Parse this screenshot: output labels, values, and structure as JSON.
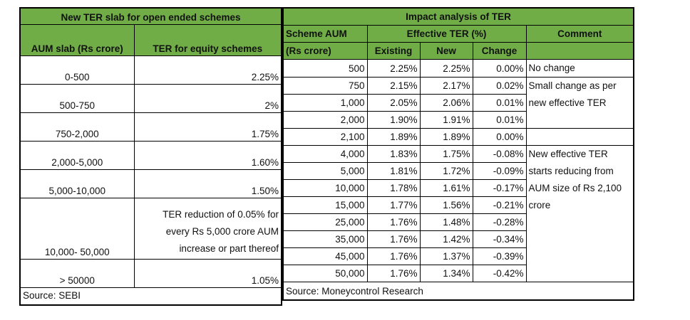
{
  "left": {
    "title": "New TER slab for open ended schemes",
    "headers": [
      "AUM slab (Rs crore)",
      "TER for equity schemes"
    ],
    "rows": [
      {
        "slab": "0-500",
        "ter": "2.25%"
      },
      {
        "slab": "500-750",
        "ter": "2%"
      },
      {
        "slab": "750-2,000",
        "ter": "1.75%"
      },
      {
        "slab": "2,000-5,000",
        "ter": "1.60%"
      },
      {
        "slab": "5,000-10,000",
        "ter": "1.50%"
      },
      {
        "slab": "10,000- 50,000",
        "ter": "TER reduction of 0.05% for every Rs 5,000 crore AUM increase or part thereof"
      },
      {
        "slab": "> 50000",
        "ter": "1.05%"
      }
    ],
    "source": "Source: SEBI"
  },
  "right": {
    "title": "Impact analysis of TER",
    "h_aum1": "Scheme AUM",
    "h_aum2": "(Rs crore)",
    "h_eff": "Effective TER (%)",
    "h_comment": "Comment",
    "h_existing": "Existing",
    "h_new": "New",
    "h_change": "Change",
    "rows": [
      {
        "aum": "500",
        "existing": "2.25%",
        "new": "2.25%",
        "change": "0.00%"
      },
      {
        "aum": "750",
        "existing": "2.15%",
        "new": "2.17%",
        "change": "0.02%"
      },
      {
        "aum": "1,000",
        "existing": "2.05%",
        "new": "2.06%",
        "change": "0.01%"
      },
      {
        "aum": "2,000",
        "existing": "1.90%",
        "new": "1.91%",
        "change": "0.01%"
      },
      {
        "aum": "2,100",
        "existing": "1.89%",
        "new": "1.89%",
        "change": "0.00%"
      },
      {
        "aum": "4,000",
        "existing": "1.83%",
        "new": "1.75%",
        "change": "-0.08%"
      },
      {
        "aum": "5,000",
        "existing": "1.81%",
        "new": "1.72%",
        "change": "-0.09%"
      },
      {
        "aum": "10,000",
        "existing": "1.78%",
        "new": "1.61%",
        "change": "-0.17%"
      },
      {
        "aum": "15,000",
        "existing": "1.77%",
        "new": "1.56%",
        "change": "-0.21%"
      },
      {
        "aum": "25,000",
        "existing": "1.76%",
        "new": "1.48%",
        "change": "-0.28%"
      },
      {
        "aum": "35,000",
        "existing": "1.76%",
        "new": "1.42%",
        "change": "-0.34%"
      },
      {
        "aum": "45,000",
        "existing": "1.76%",
        "new": "1.37%",
        "change": "-0.39%"
      },
      {
        "aum": "50,000",
        "existing": "1.76%",
        "new": "1.34%",
        "change": "-0.42%"
      }
    ],
    "comments": [
      "No change",
      "Small change as per new effective TER",
      "New effective TER starts reducing from AUM size of Rs 2,100 crore"
    ],
    "source": "Source: Moneycontrol Research"
  }
}
